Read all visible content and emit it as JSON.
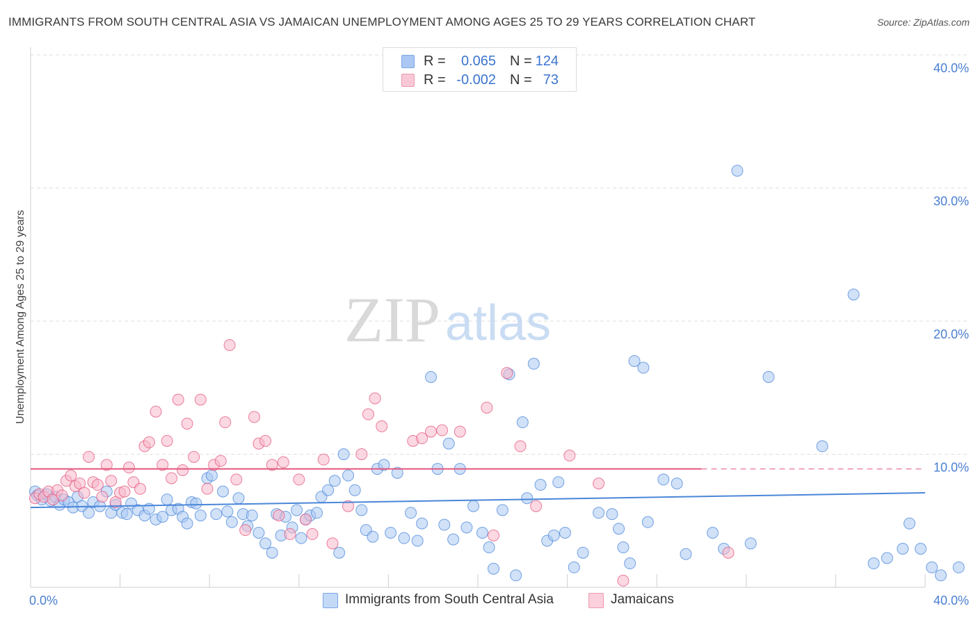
{
  "title": "IMMIGRANTS FROM SOUTH CENTRAL ASIA VS JAMAICAN UNEMPLOYMENT AMONG AGES 25 TO 29 YEARS CORRELATION CHART",
  "source": "Source: ZipAtlas.com",
  "watermark": {
    "zip": "ZIP",
    "atlas": "atlas"
  },
  "legend": {
    "r_label": "R =",
    "n_label": "N =",
    "rows": [
      {
        "r": "0.065",
        "n": "124",
        "color": "#aac8f3"
      },
      {
        "r": "-0.002",
        "n": "73",
        "color": "#f8b8cb"
      }
    ]
  },
  "bottom_legend": [
    "Immigrants from South Central Asia",
    "Jamaicans"
  ],
  "chart_data": {
    "type": "scatter",
    "xlabel": "",
    "ylabel": "Unemployment Among Ages 25 to 29 years",
    "xlim": [
      0,
      40
    ],
    "ylim": [
      0,
      40
    ],
    "x_tick_labels": [
      "0.0%",
      "40.0%"
    ],
    "y_ticks": [
      10,
      20,
      30,
      40
    ],
    "y_tick_labels": [
      "10.0%",
      "20.0%",
      "30.0%",
      "40.0%"
    ],
    "grid": true,
    "legend_placement": "top-center",
    "series": [
      {
        "name": "Immigrants from South Central Asia",
        "color": "#4a86d8",
        "fill": "#aac8f3",
        "trend": {
          "x": [
            0,
            40
          ],
          "y": [
            6.0,
            7.1
          ]
        },
        "points": [
          [
            0.2,
            7.2
          ],
          [
            0.3,
            6.9
          ],
          [
            0.5,
            6.6
          ],
          [
            0.7,
            7.0
          ],
          [
            0.9,
            6.5
          ],
          [
            1.1,
            6.8
          ],
          [
            1.3,
            6.2
          ],
          [
            1.5,
            6.6
          ],
          [
            1.7,
            6.4
          ],
          [
            1.9,
            6.0
          ],
          [
            2.1,
            6.8
          ],
          [
            2.3,
            6.1
          ],
          [
            2.6,
            5.6
          ],
          [
            2.8,
            6.4
          ],
          [
            3.1,
            6.1
          ],
          [
            3.4,
            7.2
          ],
          [
            3.6,
            5.6
          ],
          [
            3.8,
            6.2
          ],
          [
            4.1,
            5.6
          ],
          [
            4.3,
            5.5
          ],
          [
            4.5,
            6.3
          ],
          [
            4.8,
            5.8
          ],
          [
            5.1,
            5.4
          ],
          [
            5.3,
            5.9
          ],
          [
            5.6,
            5.1
          ],
          [
            5.9,
            5.3
          ],
          [
            6.1,
            6.6
          ],
          [
            6.3,
            5.8
          ],
          [
            6.6,
            5.9
          ],
          [
            6.8,
            5.3
          ],
          [
            7.0,
            4.8
          ],
          [
            7.2,
            6.4
          ],
          [
            7.4,
            6.3
          ],
          [
            7.6,
            5.4
          ],
          [
            7.9,
            8.2
          ],
          [
            8.1,
            8.4
          ],
          [
            8.3,
            5.5
          ],
          [
            8.6,
            7.2
          ],
          [
            8.8,
            5.7
          ],
          [
            9.0,
            4.9
          ],
          [
            9.3,
            6.7
          ],
          [
            9.5,
            5.5
          ],
          [
            9.7,
            4.6
          ],
          [
            9.9,
            5.4
          ],
          [
            10.2,
            4.1
          ],
          [
            10.5,
            3.3
          ],
          [
            10.8,
            2.6
          ],
          [
            11.0,
            5.5
          ],
          [
            11.2,
            3.9
          ],
          [
            11.4,
            5.3
          ],
          [
            11.7,
            4.5
          ],
          [
            11.9,
            5.8
          ],
          [
            12.1,
            3.7
          ],
          [
            12.3,
            5.1
          ],
          [
            12.5,
            5.4
          ],
          [
            12.8,
            5.6
          ],
          [
            13.0,
            6.8
          ],
          [
            13.3,
            7.3
          ],
          [
            13.6,
            8.0
          ],
          [
            13.8,
            2.6
          ],
          [
            14.0,
            10.0
          ],
          [
            14.2,
            8.4
          ],
          [
            14.5,
            7.3
          ],
          [
            14.8,
            5.8
          ],
          [
            15.0,
            4.3
          ],
          [
            15.3,
            3.8
          ],
          [
            15.5,
            8.9
          ],
          [
            15.8,
            9.2
          ],
          [
            16.1,
            4.1
          ],
          [
            16.4,
            8.6
          ],
          [
            16.7,
            3.7
          ],
          [
            17.0,
            5.6
          ],
          [
            17.3,
            3.5
          ],
          [
            17.5,
            4.8
          ],
          [
            17.9,
            15.8
          ],
          [
            18.2,
            8.9
          ],
          [
            18.5,
            4.7
          ],
          [
            18.7,
            10.8
          ],
          [
            18.9,
            3.6
          ],
          [
            19.2,
            8.9
          ],
          [
            19.5,
            4.5
          ],
          [
            19.8,
            6.1
          ],
          [
            20.2,
            4.1
          ],
          [
            20.5,
            3.0
          ],
          [
            20.7,
            1.4
          ],
          [
            21.1,
            5.8
          ],
          [
            21.4,
            16.0
          ],
          [
            21.7,
            0.9
          ],
          [
            22.0,
            12.4
          ],
          [
            22.2,
            6.7
          ],
          [
            22.5,
            16.8
          ],
          [
            22.8,
            7.7
          ],
          [
            23.1,
            3.5
          ],
          [
            23.4,
            3.9
          ],
          [
            23.6,
            7.9
          ],
          [
            23.9,
            4.1
          ],
          [
            24.3,
            1.5
          ],
          [
            24.7,
            2.6
          ],
          [
            25.4,
            5.6
          ],
          [
            26.0,
            5.5
          ],
          [
            26.3,
            4.4
          ],
          [
            26.5,
            3.0
          ],
          [
            26.8,
            1.8
          ],
          [
            27.0,
            17.0
          ],
          [
            27.4,
            16.5
          ],
          [
            27.6,
            4.9
          ],
          [
            28.3,
            8.1
          ],
          [
            28.9,
            7.8
          ],
          [
            29.3,
            2.5
          ],
          [
            30.5,
            4.1
          ],
          [
            31.0,
            2.9
          ],
          [
            31.6,
            31.3
          ],
          [
            32.2,
            3.3
          ],
          [
            33.0,
            15.8
          ],
          [
            35.4,
            10.6
          ],
          [
            36.8,
            22.0
          ],
          [
            37.7,
            1.8
          ],
          [
            38.3,
            2.2
          ],
          [
            39.0,
            2.9
          ],
          [
            39.8,
            2.9
          ],
          [
            40.3,
            1.5
          ],
          [
            40.7,
            0.9
          ],
          [
            41.5,
            1.5
          ],
          [
            39.3,
            4.8
          ]
        ]
      },
      {
        "name": "Jamaicans",
        "color": "#e3567d",
        "fill": "#f8b8cb",
        "trend": {
          "x": [
            0,
            30
          ],
          "y": [
            8.9,
            8.9
          ]
        },
        "trend_dashed": {
          "x": [
            30,
            40
          ],
          "y": [
            8.9,
            8.9
          ]
        },
        "points": [
          [
            0.2,
            6.7
          ],
          [
            0.4,
            7.0
          ],
          [
            0.6,
            6.8
          ],
          [
            0.8,
            7.2
          ],
          [
            1.0,
            6.6
          ],
          [
            1.2,
            7.3
          ],
          [
            1.4,
            6.9
          ],
          [
            1.6,
            8.0
          ],
          [
            1.8,
            8.4
          ],
          [
            2.0,
            7.6
          ],
          [
            2.2,
            7.8
          ],
          [
            2.4,
            7.1
          ],
          [
            2.6,
            9.8
          ],
          [
            2.8,
            7.9
          ],
          [
            3.0,
            7.7
          ],
          [
            3.2,
            6.8
          ],
          [
            3.4,
            9.2
          ],
          [
            3.6,
            8.0
          ],
          [
            3.8,
            6.4
          ],
          [
            4.0,
            7.1
          ],
          [
            4.2,
            7.2
          ],
          [
            4.4,
            9.0
          ],
          [
            4.6,
            7.9
          ],
          [
            4.9,
            7.4
          ],
          [
            5.1,
            10.6
          ],
          [
            5.3,
            10.9
          ],
          [
            5.6,
            13.2
          ],
          [
            5.9,
            9.2
          ],
          [
            6.1,
            11.0
          ],
          [
            6.3,
            8.2
          ],
          [
            6.6,
            14.1
          ],
          [
            6.8,
            8.8
          ],
          [
            7.0,
            12.3
          ],
          [
            7.3,
            9.8
          ],
          [
            7.6,
            14.1
          ],
          [
            7.9,
            7.4
          ],
          [
            8.2,
            9.2
          ],
          [
            8.5,
            9.5
          ],
          [
            8.7,
            12.4
          ],
          [
            8.9,
            18.2
          ],
          [
            9.2,
            8.1
          ],
          [
            9.6,
            4.3
          ],
          [
            10.0,
            12.8
          ],
          [
            10.2,
            10.8
          ],
          [
            10.5,
            11.0
          ],
          [
            10.8,
            9.2
          ],
          [
            11.1,
            5.4
          ],
          [
            11.3,
            9.4
          ],
          [
            11.6,
            4.0
          ],
          [
            12.0,
            8.1
          ],
          [
            12.3,
            5.1
          ],
          [
            12.6,
            4.0
          ],
          [
            13.1,
            9.6
          ],
          [
            13.5,
            3.3
          ],
          [
            14.2,
            6.1
          ],
          [
            14.8,
            10.0
          ],
          [
            15.1,
            13.0
          ],
          [
            15.4,
            14.2
          ],
          [
            15.7,
            12.1
          ],
          [
            17.1,
            11.0
          ],
          [
            17.5,
            11.2
          ],
          [
            17.9,
            11.7
          ],
          [
            18.4,
            11.8
          ],
          [
            19.2,
            11.7
          ],
          [
            20.4,
            13.5
          ],
          [
            20.7,
            3.9
          ],
          [
            21.3,
            16.1
          ],
          [
            21.9,
            10.6
          ],
          [
            22.6,
            6.1
          ],
          [
            24.1,
            9.9
          ],
          [
            25.4,
            7.8
          ],
          [
            26.5,
            0.5
          ],
          [
            31.2,
            2.6
          ]
        ]
      }
    ]
  }
}
